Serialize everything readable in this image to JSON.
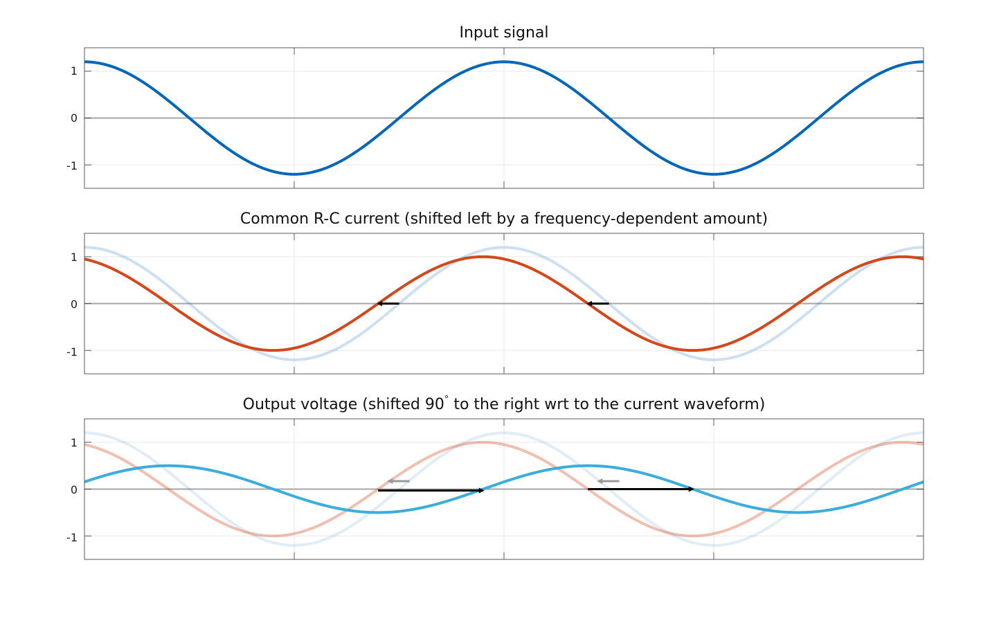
{
  "chart_data": [
    {
      "type": "line",
      "title": "Input signal",
      "xlabel": "",
      "ylabel": "",
      "xlim": [
        0,
        4
      ],
      "ylim": [
        -1.5,
        1.5
      ],
      "yticks": [
        "1",
        "0",
        "-1"
      ],
      "grid": true,
      "series": [
        {
          "role": "input",
          "color": "#0066b8",
          "opacity": 1,
          "amplitude": 1.2,
          "shift": 0,
          "samples": 241
        }
      ]
    },
    {
      "type": "line",
      "title": "Common R-C current (shifted left by a frequency-dependent amount)",
      "xlabel": "",
      "ylabel": "",
      "xlim": [
        0,
        4
      ],
      "ylim": [
        -1.5,
        1.5
      ],
      "yticks": [
        "1",
        "0",
        "-1"
      ],
      "grid": true,
      "series": [
        {
          "role": "input",
          "color": "#0066b8",
          "opacity": 0.2,
          "amplitude": 1.2,
          "shift": 0,
          "samples": 241
        },
        {
          "role": "current",
          "color": "#d4471a",
          "opacity": 1,
          "amplitude": 1.0,
          "shift": 0.1,
          "samples": 241
        }
      ],
      "arrows": [
        {
          "from": [
            1.5,
            0
          ],
          "to": [
            1.4,
            0
          ],
          "color": "#000000"
        },
        {
          "from": [
            2.5,
            0
          ],
          "to": [
            2.4,
            0
          ],
          "color": "#000000"
        }
      ]
    },
    {
      "type": "line",
      "title": "Output voltage (shifted 90",
      "title_sup": "°",
      "title_rest": " to the right wrt to the current waveform)",
      "xlabel": "",
      "ylabel": "",
      "xlim": [
        0,
        4
      ],
      "ylim": [
        -1.5,
        1.5
      ],
      "yticks": [
        "1",
        "0",
        "-1"
      ],
      "grid": true,
      "series": [
        {
          "role": "input",
          "color": "#0066b8",
          "opacity": 0.12,
          "amplitude": 1.2,
          "shift": 0,
          "samples": 241
        },
        {
          "role": "current",
          "color": "#d4471a",
          "opacity": 0.35,
          "amplitude": 1.0,
          "shift": 0.1,
          "samples": 241
        },
        {
          "role": "output",
          "color": "#3aaddc",
          "opacity": 1,
          "amplitude": 0.5,
          "shift": -0.4,
          "samples": 241
        }
      ],
      "arrows": [
        {
          "from": [
            1.55,
            0.17
          ],
          "to": [
            1.45,
            0.17
          ],
          "color": "#999999"
        },
        {
          "from": [
            2.55,
            0.17
          ],
          "to": [
            2.45,
            0.17
          ],
          "color": "#999999"
        },
        {
          "from": [
            1.4,
            -0.03
          ],
          "to": [
            1.9,
            -0.03
          ],
          "color": "#000000"
        },
        {
          "from": [
            2.4,
            0.0
          ],
          "to": [
            2.9,
            0.0
          ],
          "color": "#000000"
        }
      ]
    }
  ]
}
